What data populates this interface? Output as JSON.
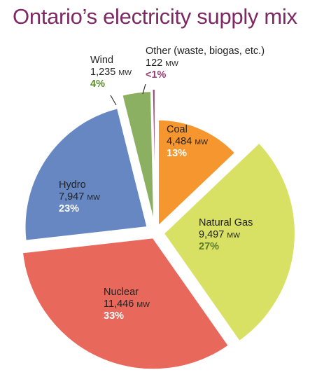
{
  "chart_data": {
    "type": "pie",
    "title": "Ontario’s electricity supply mix",
    "unit": "MW",
    "slices": [
      {
        "label": "Coal",
        "value": "4,484",
        "unit": "MW",
        "percent": "13%",
        "color": "#f6962e",
        "pct_color": "#ffffff",
        "mw": 4484
      },
      {
        "label": "Natural Gas",
        "value": "9,497",
        "unit": "MW",
        "percent": "27%",
        "color": "#d8e164",
        "pct_color": "#5b7a2a",
        "mw": 9497
      },
      {
        "label": "Nuclear",
        "value": "11,446",
        "unit": "MW",
        "percent": "33%",
        "color": "#e8695b",
        "pct_color": "#ffffff",
        "mw": 11446
      },
      {
        "label": "Hydro",
        "value": "7,947",
        "unit": "MW",
        "percent": "23%",
        "color": "#6787c3",
        "pct_color": "#ffffff",
        "mw": 7947
      },
      {
        "label": "Wind",
        "value": "1,235",
        "unit": "MW",
        "percent": "4%",
        "color": "#8cb061",
        "pct_color": "#5b8a2e",
        "mw": 1235
      },
      {
        "label": "Other (waste, biogas, etc.)",
        "value": "122",
        "unit": "MW",
        "percent": "<1%",
        "color": "#a04a7c",
        "pct_color": "#9b3f78",
        "mw": 122
      }
    ]
  },
  "colors": {
    "title": "#7d2a63",
    "label_text": "#222222"
  }
}
